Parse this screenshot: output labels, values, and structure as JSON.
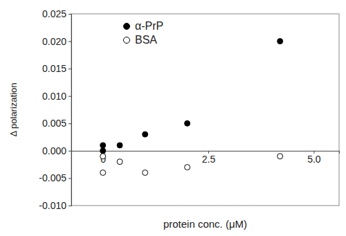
{
  "chart_data": {
    "type": "scatter",
    "x_label": "protein conc. (μM)",
    "y_label": "Δ polarization",
    "x": [
      0,
      0,
      0.4,
      1.0,
      2.0,
      4.2
    ],
    "series": [
      {
        "name": "α-PrP",
        "color": "#000000",
        "marker": "filled",
        "values": [
          0.001,
          0.0,
          0.001,
          0.003,
          0.005,
          0.02
        ]
      },
      {
        "name": "BSA",
        "color": "#000000",
        "marker": "open",
        "values": [
          -0.001,
          -0.004,
          -0.002,
          -0.004,
          -0.003,
          -0.001
        ]
      }
    ],
    "xlim": [
      -0.75,
      5.6
    ],
    "xticks": [
      0,
      2.5,
      {
        "value": 5.0,
        "label": "5.0"
      }
    ],
    "ylim": [
      -0.01,
      0.025
    ],
    "yticks": [
      {
        "value": -0.01,
        "label": "-0.010"
      },
      -0.005,
      {
        "value": 0.0,
        "label": "0.000"
      },
      0.005,
      {
        "value": 0.01,
        "label": "0.010"
      },
      0.015,
      {
        "value": 0.02,
        "label": "0.020"
      },
      0.025
    ],
    "legend": "upper-left",
    "grid": false
  }
}
